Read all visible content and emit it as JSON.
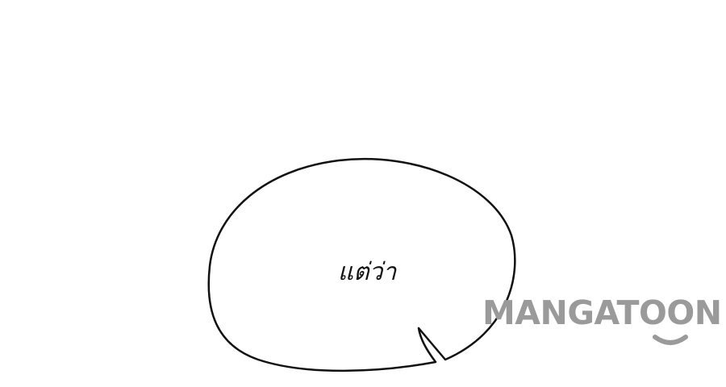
{
  "bubble": {
    "text": "แต่ว่า"
  },
  "watermark": {
    "brand": "MANGATOON",
    "color": "#9a9a9a"
  },
  "colors": {
    "background": "#ffffff",
    "outline": "#111111"
  }
}
